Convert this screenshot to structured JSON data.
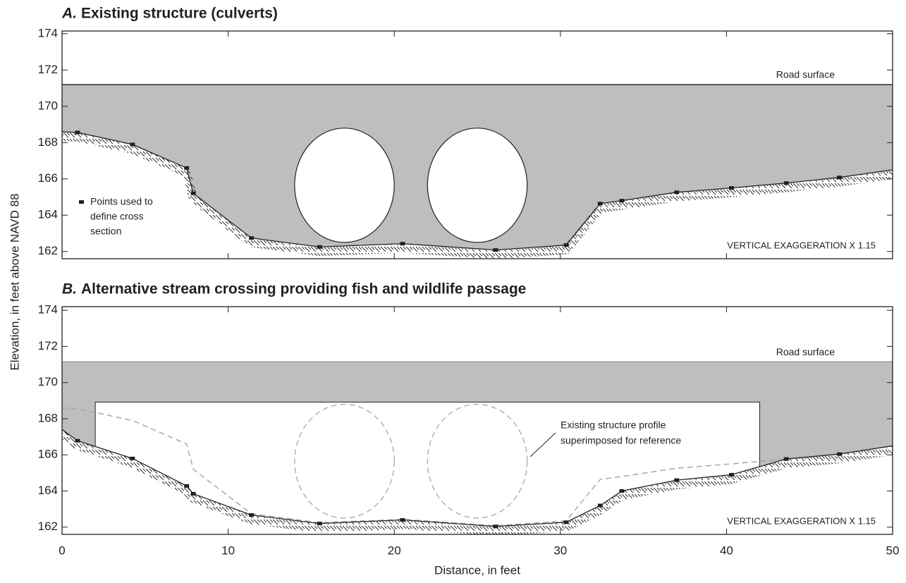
{
  "ylabel": "Elevation, in feet above NAVD 88",
  "xlabel": "Distance, in feet",
  "chart_data": [
    {
      "type": "cross-section",
      "label": "A.",
      "title": "Existing structure (culverts)",
      "xlim": [
        0,
        50
      ],
      "ylim": [
        161.6,
        174.15
      ],
      "xticks": [
        0,
        10,
        20,
        30,
        40,
        50
      ],
      "yticks": [
        162,
        164,
        166,
        168,
        170,
        172,
        174
      ],
      "fill_color": "#bcbec0",
      "road": {
        "label": "Road surface",
        "elevation": 171.2
      },
      "ground": {
        "x": [
          0,
          0.93,
          4.24,
          7.5,
          7.9,
          11.4,
          15.5,
          20.5,
          26.1,
          30.35,
          32.4,
          33.7,
          37.0,
          40.3,
          43.6,
          46.8,
          50
        ],
        "y": [
          168.6,
          168.56,
          167.9,
          166.6,
          165.2,
          162.74,
          162.25,
          162.43,
          162.08,
          162.35,
          164.64,
          164.8,
          165.26,
          165.5,
          165.77,
          166.08,
          166.5
        ]
      },
      "culverts": [
        {
          "cx": 17,
          "cy": 165.65,
          "rx": 3.0,
          "ry": 3.15
        },
        {
          "cx": 25,
          "cy": 165.65,
          "rx": 3.0,
          "ry": 3.15
        }
      ],
      "legend": [
        "Points used to",
        "define cross",
        "section"
      ],
      "note": "VERTICAL EXAGGERATION X 1.15"
    },
    {
      "type": "cross-section",
      "label": "B.",
      "title": "Alternative stream crossing providing fish and wildlife passage",
      "xlim": [
        0,
        50
      ],
      "ylim": [
        161.6,
        174.2
      ],
      "xticks": [
        0,
        10,
        20,
        30,
        40,
        50
      ],
      "yticks": [
        162,
        164,
        166,
        168,
        170,
        172,
        174
      ],
      "fill_color": "#bcbec0",
      "road": {
        "label": "Road surface",
        "elevation": 171.15
      },
      "ground": {
        "x": [
          0,
          0.93,
          4.24,
          7.5,
          7.9,
          11.4,
          15.5,
          20.5,
          26.1,
          30.35,
          32.4,
          33.7,
          37.0,
          40.3,
          43.6,
          46.8,
          50
        ],
        "y": [
          167.4,
          166.78,
          165.8,
          164.28,
          163.85,
          162.67,
          162.2,
          162.4,
          162.04,
          162.27,
          163.2,
          164.0,
          164.6,
          164.9,
          165.77,
          166.04,
          166.5
        ]
      },
      "opening": {
        "x": [
          2,
          42
        ],
        "top": 168.92
      },
      "show_existing_profile": true,
      "annotation": [
        "Existing structure profile",
        "superimposed for reference"
      ],
      "note": "VERTICAL EXAGGERATION X 1.15"
    }
  ]
}
